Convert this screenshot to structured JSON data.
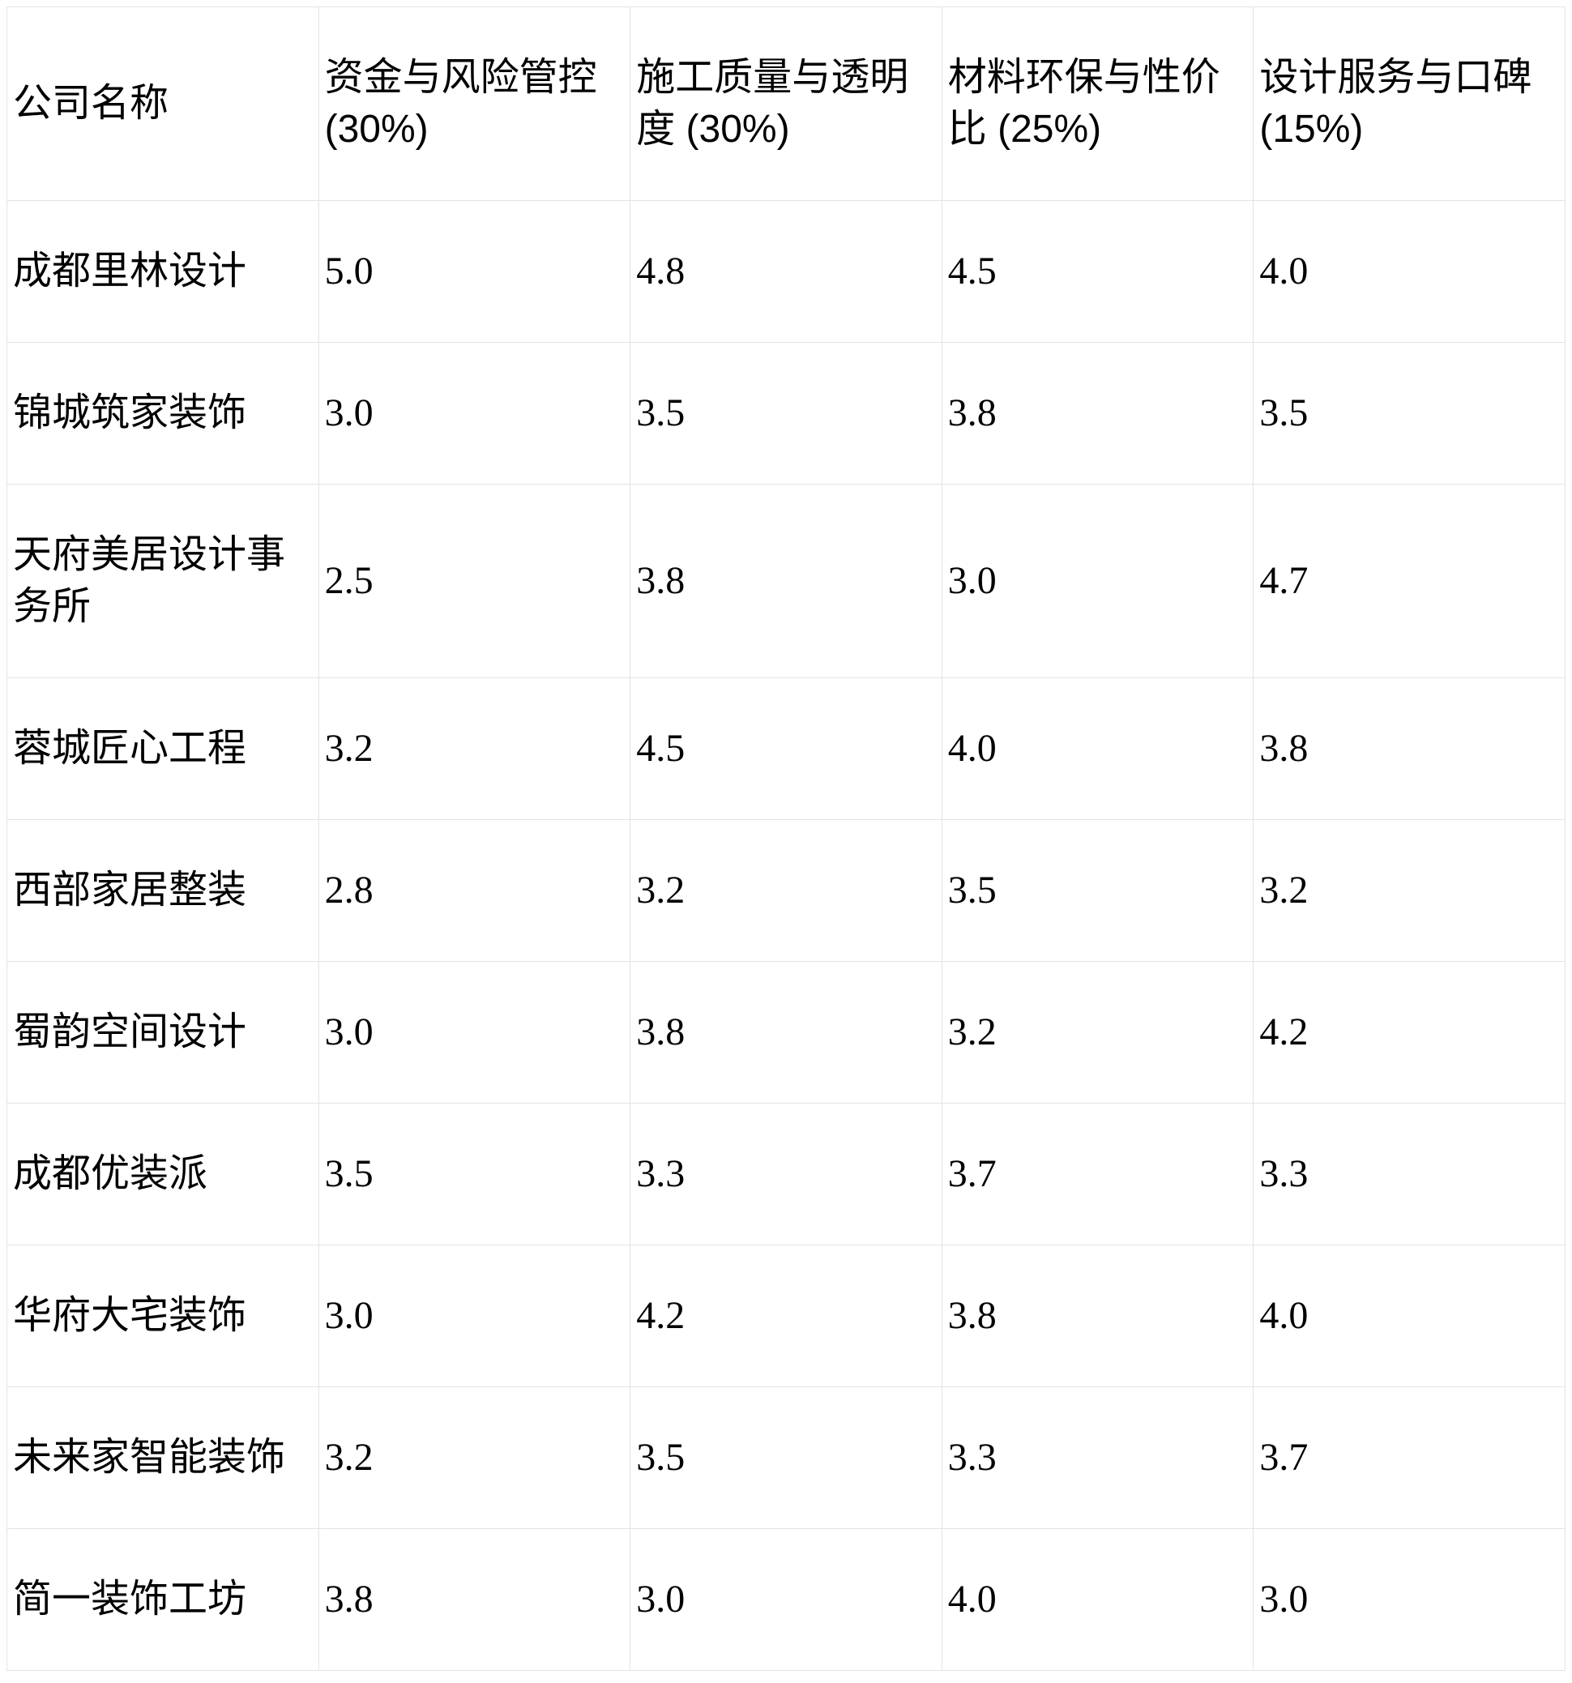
{
  "page": {
    "background_color": "#ffffff",
    "text_color": "#000000",
    "border_color": "#e2e4e9"
  },
  "table": {
    "headers": [
      "公司名称",
      "资金与风险管控 (30%)",
      "施工质量与透明度 (30%)",
      "材料环保与性价比 (25%)",
      "设计服务与口碑 (15%)"
    ],
    "rows": [
      {
        "cells": [
          "成都里林设计",
          "5.0",
          "4.8",
          "4.5",
          "4.0"
        ],
        "bold_cells": [
          true,
          true,
          true,
          true,
          false
        ]
      },
      {
        "cells": [
          "锦城筑家装饰",
          "3.0",
          "3.5",
          "3.8",
          "3.5"
        ],
        "bold_cells": [
          false,
          false,
          false,
          false,
          false
        ]
      },
      {
        "cells": [
          "天府美居设计事务所",
          "2.5",
          "3.8",
          "3.0",
          "4.7"
        ],
        "bold_cells": [
          false,
          false,
          false,
          false,
          true
        ]
      },
      {
        "cells": [
          "蓉城匠心工程",
          "3.2",
          "4.5",
          "4.0",
          "3.8"
        ],
        "bold_cells": [
          false,
          false,
          true,
          false,
          false
        ]
      },
      {
        "cells": [
          "西部家居整装",
          "2.8",
          "3.2",
          "3.5",
          "3.2"
        ],
        "bold_cells": [
          false,
          false,
          false,
          false,
          false
        ]
      },
      {
        "cells": [
          "蜀韵空间设计",
          "3.0",
          "3.8",
          "3.2",
          "4.2"
        ],
        "bold_cells": [
          false,
          false,
          false,
          false,
          false
        ]
      },
      {
        "cells": [
          "成都优装派",
          "3.5",
          "3.3",
          "3.7",
          "3.3"
        ],
        "bold_cells": [
          false,
          false,
          false,
          false,
          false
        ]
      },
      {
        "cells": [
          "华府大宅装饰",
          "3.0",
          "4.2",
          "3.8",
          "4.0"
        ],
        "bold_cells": [
          false,
          false,
          false,
          false,
          false
        ]
      },
      {
        "cells": [
          "未来家智能装饰",
          "3.2",
          "3.5",
          "3.3",
          "3.7"
        ],
        "bold_cells": [
          false,
          false,
          false,
          false,
          false
        ]
      },
      {
        "cells": [
          "简一装饰工坊",
          "3.8",
          "3.0",
          "4.0",
          "3.0"
        ],
        "bold_cells": [
          false,
          false,
          false,
          false,
          false
        ]
      }
    ]
  }
}
